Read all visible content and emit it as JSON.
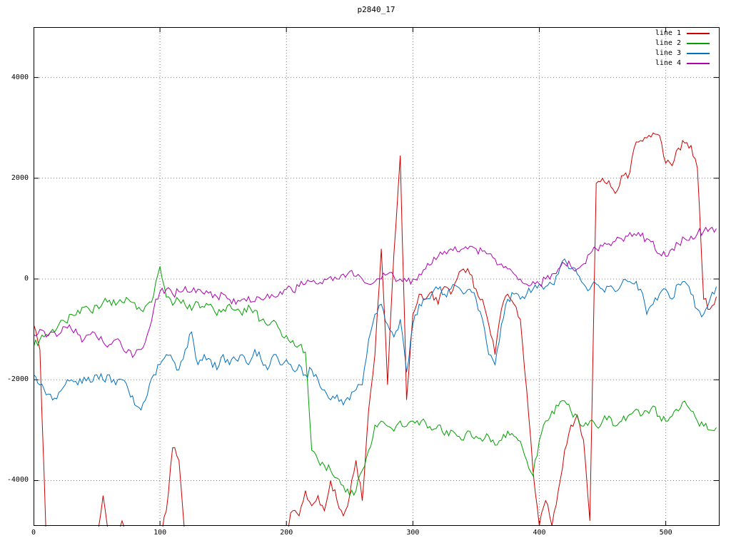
{
  "chart_data": {
    "type": "line",
    "title": "p2840_17",
    "xlabel": "",
    "ylabel": "",
    "xlim": [
      0,
      542
    ],
    "ylim": [
      -4900,
      5000
    ],
    "xticks": [
      0,
      100,
      200,
      300,
      400,
      500
    ],
    "yticks": [
      -4000,
      -2000,
      0,
      2000,
      4000
    ],
    "grid": true,
    "legend_position": "top-right-inside",
    "x_start": 0,
    "x_step": 5,
    "noise_amplitude": 90,
    "series": [
      {
        "name": "line 1",
        "color": "#cc0000",
        "values": [
          -900,
          -1400,
          -5200,
          -5200,
          -5200,
          -5200,
          -5200,
          -5200,
          -5200,
          -5200,
          -5200,
          -4300,
          -5200,
          -5200,
          -4800,
          -5200,
          -5200,
          -5200,
          -5200,
          -5200,
          -5200,
          -4600,
          -3350,
          -3600,
          -5200,
          -5200,
          -5200,
          -5200,
          -5200,
          -5200,
          -5200,
          -5200,
          -5200,
          -5200,
          -5200,
          -5200,
          -5200,
          -5200,
          -5200,
          -5200,
          -5000,
          -4600,
          -4700,
          -4200,
          -4500,
          -4300,
          -4600,
          -4000,
          -4400,
          -4700,
          -4300,
          -3600,
          -4400,
          -2600,
          -1500,
          600,
          -2100,
          500,
          2450,
          -2400,
          -700,
          -300,
          -400,
          -250,
          -500,
          -150,
          -300,
          0,
          200,
          100,
          -200,
          -400,
          -900,
          -1500,
          -600,
          -300,
          -500,
          -800,
          -2200,
          -3800,
          -4900,
          -4400,
          -4900,
          -4200,
          -3400,
          -2900,
          -2700,
          -3200,
          -4800,
          1900,
          2000,
          1950,
          1700,
          2050,
          2000,
          2600,
          2750,
          2800,
          2900,
          2850,
          2300,
          2250,
          2600,
          2700,
          2650,
          2200,
          -400,
          -600,
          -350
        ]
      },
      {
        "name": "line 2",
        "color": "#00a000",
        "values": [
          -1350,
          -1200,
          -1100,
          -1000,
          -900,
          -850,
          -700,
          -620,
          -560,
          -640,
          -520,
          -460,
          -420,
          -520,
          -460,
          -400,
          -470,
          -620,
          -500,
          -320,
          250,
          -360,
          -520,
          -420,
          -520,
          -620,
          -460,
          -560,
          -500,
          -720,
          -600,
          -500,
          -620,
          -720,
          -520,
          -620,
          -820,
          -920,
          -820,
          -1020,
          -1120,
          -1220,
          -1320,
          -1450,
          -3400,
          -3600,
          -3700,
          -3800,
          -3950,
          -4100,
          -4300,
          -4200,
          -3800,
          -3400,
          -2900,
          -2820,
          -2920,
          -3020,
          -2820,
          -2920,
          -2820,
          -2900,
          -2850,
          -3000,
          -2900,
          -3100,
          -3000,
          -3120,
          -3200,
          -3020,
          -3120,
          -3220,
          -3120,
          -3300,
          -3200,
          -3020,
          -3120,
          -3220,
          -3600,
          -3900,
          -3200,
          -2820,
          -2620,
          -2520,
          -2420,
          -2620,
          -2720,
          -2920,
          -2820,
          -2920,
          -2820,
          -2720,
          -2920,
          -2820,
          -2720,
          -2620,
          -2720,
          -2620,
          -2520,
          -2720,
          -2820,
          -2720,
          -2620,
          -2420,
          -2620,
          -2820,
          -2920,
          -3000,
          -2950
        ]
      },
      {
        "name": "line 3",
        "color": "#0070c0",
        "values": [
          -1900,
          -2100,
          -2300,
          -2400,
          -2250,
          -2100,
          -2000,
          -2100,
          -1950,
          -2050,
          -1900,
          -2000,
          -1900,
          -2100,
          -2000,
          -2200,
          -2500,
          -2600,
          -2300,
          -1900,
          -1700,
          -1500,
          -1600,
          -1800,
          -1400,
          -1050,
          -1700,
          -1500,
          -1600,
          -1800,
          -1500,
          -1700,
          -1600,
          -1500,
          -1700,
          -1400,
          -1600,
          -1800,
          -1500,
          -1700,
          -1600,
          -1800,
          -1700,
          -1900,
          -1800,
          -2000,
          -2200,
          -2400,
          -2300,
          -2500,
          -2400,
          -2200,
          -2100,
          -1200,
          -700,
          -500,
          -900,
          -1150,
          -800,
          -1850,
          -900,
          -500,
          -400,
          -300,
          -200,
          -300,
          -200,
          -150,
          -300,
          -200,
          -400,
          -800,
          -1500,
          -1700,
          -900,
          -400,
          -300,
          -400,
          -300,
          -200,
          -100,
          -150,
          -100,
          100,
          400,
          200,
          100,
          -100,
          -200,
          -100,
          -200,
          -150,
          -250,
          -100,
          -50,
          -100,
          -200,
          -700,
          -500,
          -300,
          -200,
          -400,
          -100,
          -50,
          -300,
          -600,
          -700,
          -400,
          -150
        ]
      },
      {
        "name": "line 4",
        "color": "#b000b0",
        "values": [
          -1100,
          -1000,
          -1150,
          -1050,
          -1100,
          -950,
          -1000,
          -1100,
          -1200,
          -1100,
          -1150,
          -1250,
          -1300,
          -1200,
          -1350,
          -1400,
          -1500,
          -1400,
          -1100,
          -600,
          -250,
          -200,
          -300,
          -250,
          -150,
          -250,
          -200,
          -300,
          -250,
          -350,
          -300,
          -400,
          -500,
          -400,
          -350,
          -450,
          -400,
          -300,
          -350,
          -250,
          -200,
          -250,
          -150,
          -100,
          -50,
          -100,
          0,
          50,
          0,
          100,
          150,
          50,
          0,
          -100,
          -50,
          0,
          100,
          50,
          0,
          -50,
          0,
          100,
          200,
          300,
          450,
          550,
          600,
          550,
          600,
          650,
          600,
          550,
          500,
          400,
          300,
          200,
          100,
          0,
          -100,
          -50,
          -100,
          0,
          100,
          200,
          300,
          250,
          200,
          300,
          500,
          600,
          650,
          700,
          750,
          800,
          850,
          900,
          850,
          800,
          750,
          500,
          450,
          600,
          700,
          800,
          850,
          900,
          950,
          1000,
          1000
        ]
      }
    ]
  }
}
